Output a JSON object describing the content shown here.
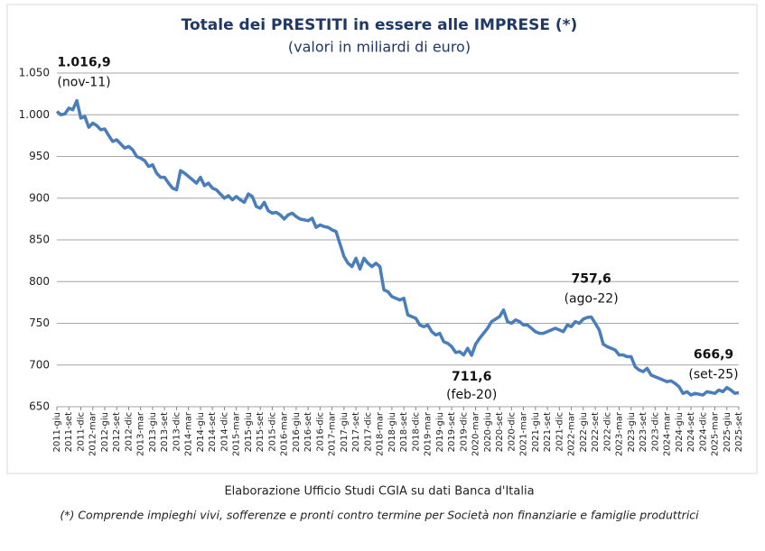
{
  "chart_data": {
    "type": "line",
    "title": "Totale dei PRESTITI in essere alle IMPRESE (*)",
    "subtitle": "(valori in miliardi di euro)",
    "source": "Elaborazione Ufficio Studi CGIA su dati Banca d'Italia",
    "footnote": "(*) Comprende impieghi vivi, sofferenze e pronti contro termine per Società non finanziarie e famiglie produttrici",
    "color": "#4a7ebb",
    "grid": true,
    "ylim": [
      650,
      1050
    ],
    "yticks": [
      650,
      700,
      750,
      800,
      850,
      900,
      950,
      {
        "value": 1000,
        "label": "1.000"
      },
      {
        "value": 1050,
        "label": "1.050"
      }
    ],
    "categories": [
      "2011-giu",
      null,
      null,
      "2011-set",
      null,
      null,
      "2011-dic",
      null,
      null,
      "2012-mar",
      null,
      null,
      "2012-giu",
      null,
      null,
      "2012-set",
      null,
      null,
      "2012-dic",
      null,
      null,
      "2013-mar",
      null,
      null,
      "2013-giu",
      null,
      null,
      "2013-set",
      null,
      null,
      "2013-dic",
      null,
      null,
      "2014-mar",
      null,
      null,
      "2014-giu",
      null,
      null,
      "2014-set",
      null,
      null,
      "2014-dic",
      null,
      null,
      "2015-mar",
      null,
      null,
      "2015-giu",
      null,
      null,
      "2015-set",
      null,
      null,
      "2015-dic",
      null,
      null,
      "2016-mar",
      null,
      null,
      "2016-giu",
      null,
      null,
      "2016-set",
      null,
      null,
      "2016-dic",
      null,
      null,
      "2017-mar",
      null,
      null,
      "2017-giu",
      null,
      null,
      "2017-set",
      null,
      null,
      "2017-dic",
      null,
      null,
      "2018-mar",
      null,
      null,
      "2018-giu",
      null,
      null,
      "2018-set",
      null,
      null,
      "2018-dic",
      null,
      null,
      "2019-mar",
      null,
      null,
      "2019-giu",
      null,
      null,
      "2019-set",
      null,
      null,
      "2019-dic",
      null,
      null,
      "2020-mar",
      null,
      null,
      "2020-giu",
      null,
      null,
      "2020-set",
      null,
      null,
      "2020-dic",
      null,
      null,
      "2021-mar",
      null,
      null,
      "2021-giu",
      null,
      null,
      "2021-set",
      null,
      null,
      "2021-dic",
      null,
      null,
      "2022-mar",
      null,
      null,
      "2022-giu",
      null,
      null,
      "2022-set",
      null,
      null,
      "2022-dic",
      null,
      null,
      "2023-mar",
      null,
      null,
      "2023-giu",
      null,
      null,
      "2023-set",
      null,
      null,
      "2023-dic",
      null,
      null,
      "2024-mar",
      null,
      null,
      "2024-giu",
      null,
      null,
      "2024-set",
      null,
      null,
      "2024-dic",
      null,
      null,
      "2025-mar",
      null,
      null,
      "2025-giu",
      null,
      null,
      "2025-set"
    ],
    "values": [
      1004,
      1000,
      1001,
      1008,
      1006,
      1016.9,
      996,
      998,
      985,
      990,
      987,
      982,
      983,
      975,
      968,
      970,
      965,
      960,
      962,
      958,
      950,
      948,
      945,
      938,
      940,
      930,
      925,
      925,
      918,
      912,
      910,
      933,
      930,
      926,
      922,
      918,
      925,
      915,
      918,
      912,
      910,
      905,
      900,
      903,
      898,
      902,
      898,
      895,
      905,
      902,
      890,
      888,
      895,
      885,
      882,
      883,
      880,
      875,
      880,
      882,
      878,
      875,
      874,
      873,
      876,
      865,
      868,
      866,
      865,
      862,
      860,
      845,
      830,
      822,
      818,
      828,
      815,
      828,
      822,
      818,
      822,
      818,
      790,
      788,
      782,
      780,
      778,
      780,
      760,
      758,
      756,
      748,
      746,
      748,
      740,
      736,
      738,
      728,
      726,
      722,
      715,
      716,
      712,
      720,
      711.6,
      725,
      732,
      738,
      744,
      752,
      755,
      758,
      766,
      752,
      750,
      754,
      752,
      748,
      748,
      744,
      740,
      738,
      738,
      740,
      742,
      744,
      742,
      740,
      748,
      746,
      752,
      750,
      755,
      757,
      757.6,
      750,
      742,
      725,
      722,
      720,
      718,
      712,
      712,
      710,
      710,
      698,
      694,
      692,
      696,
      688,
      686,
      684,
      682,
      680,
      681,
      678,
      674,
      666,
      668,
      664,
      666,
      665,
      664,
      668,
      667,
      666,
      670,
      668,
      673,
      670,
      666,
      666.9
    ],
    "value_labels": [
      null,
      null,
      null,
      null,
      null,
      "1.016,9",
      null,
      null,
      null,
      null,
      null,
      null,
      null,
      null,
      null,
      null,
      null,
      null,
      null,
      null,
      null,
      null,
      null,
      null,
      null,
      null,
      null,
      null,
      null,
      null,
      null,
      null,
      null,
      null,
      null,
      null,
      null,
      null,
      null,
      null,
      null,
      null,
      null,
      null,
      null,
      null,
      null,
      null,
      null,
      null,
      null,
      null,
      null,
      null,
      null,
      null,
      null,
      null,
      null,
      null,
      null,
      null,
      null,
      null,
      null,
      null,
      null,
      null,
      null,
      null,
      null,
      null,
      null,
      null,
      null,
      null,
      null,
      null,
      null,
      null,
      null,
      null,
      null,
      null,
      null,
      null,
      null,
      null,
      null,
      null,
      null,
      null,
      null,
      null,
      null,
      null,
      null,
      null,
      null,
      null,
      null,
      null,
      null,
      null,
      "711,6",
      null,
      null,
      null,
      null,
      null,
      null,
      null,
      null,
      null,
      null,
      null,
      null,
      null,
      null,
      null,
      null,
      null,
      null,
      null,
      null,
      null,
      null,
      null,
      null,
      null,
      null,
      null,
      null,
      null,
      "757,6",
      null,
      null,
      null,
      null,
      null,
      null,
      null,
      null,
      null,
      null,
      null,
      null,
      null,
      null,
      null,
      null,
      null,
      null,
      null,
      null,
      null,
      null,
      null,
      null,
      null,
      null,
      null,
      null,
      null,
      null,
      null,
      null,
      null,
      null,
      null,
      null,
      "666,9"
    ],
    "point_dates": [
      null,
      null,
      null,
      null,
      null,
      "(nov-11)",
      null,
      null,
      null,
      null,
      null,
      null,
      null,
      null,
      null,
      null,
      null,
      null,
      null,
      null,
      null,
      null,
      null,
      null,
      null,
      null,
      null,
      null,
      null,
      null,
      null,
      null,
      null,
      null,
      null,
      null,
      null,
      null,
      null,
      null,
      null,
      null,
      null,
      null,
      null,
      null,
      null,
      null,
      null,
      null,
      null,
      null,
      null,
      null,
      null,
      null,
      null,
      null,
      null,
      null,
      null,
      null,
      null,
      null,
      null,
      null,
      null,
      null,
      null,
      null,
      null,
      null,
      null,
      null,
      null,
      null,
      null,
      null,
      null,
      null,
      null,
      null,
      null,
      null,
      null,
      null,
      null,
      null,
      null,
      null,
      null,
      null,
      null,
      null,
      null,
      null,
      null,
      null,
      null,
      null,
      null,
      null,
      null,
      null,
      "(feb-20)",
      null,
      null,
      null,
      null,
      null,
      null,
      null,
      null,
      null,
      null,
      null,
      null,
      null,
      null,
      null,
      null,
      null,
      null,
      null,
      null,
      null,
      null,
      null,
      null,
      null,
      null,
      null,
      null,
      null,
      "(ago-22)",
      null,
      null,
      null,
      null,
      null,
      null,
      null,
      null,
      null,
      null,
      null,
      null,
      null,
      null,
      null,
      null,
      null,
      null,
      null,
      null,
      null,
      null,
      null,
      null,
      null,
      null,
      null,
      null,
      null,
      null,
      null,
      null,
      null,
      null,
      null,
      null,
      "(set-25)"
    ]
  }
}
